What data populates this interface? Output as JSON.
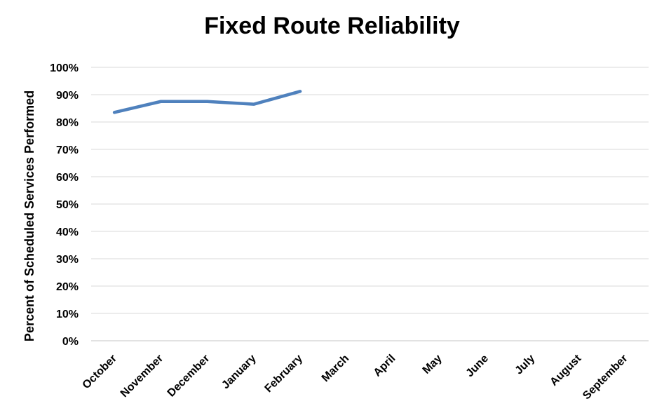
{
  "chart_data": {
    "type": "line",
    "title": "Fixed Route Reliability",
    "xlabel": "",
    "ylabel": "Percent of Scheduled Services Performed",
    "categories": [
      "October",
      "November",
      "December",
      "January",
      "February",
      "March",
      "April",
      "May",
      "June",
      "July",
      "August",
      "September"
    ],
    "series": [
      {
        "values": [
          0.835,
          0.875,
          0.875,
          0.865,
          0.912,
          null,
          null,
          null,
          null,
          null,
          null,
          null
        ],
        "color": "#4F81BD"
      }
    ],
    "ylim": [
      0,
      1
    ],
    "yticks": [
      "0%",
      "10%",
      "20%",
      "30%",
      "40%",
      "50%",
      "60%",
      "70%",
      "80%",
      "90%",
      "100%"
    ],
    "grid": true,
    "legend": "none",
    "gridline_color": "#D9D9D9"
  }
}
